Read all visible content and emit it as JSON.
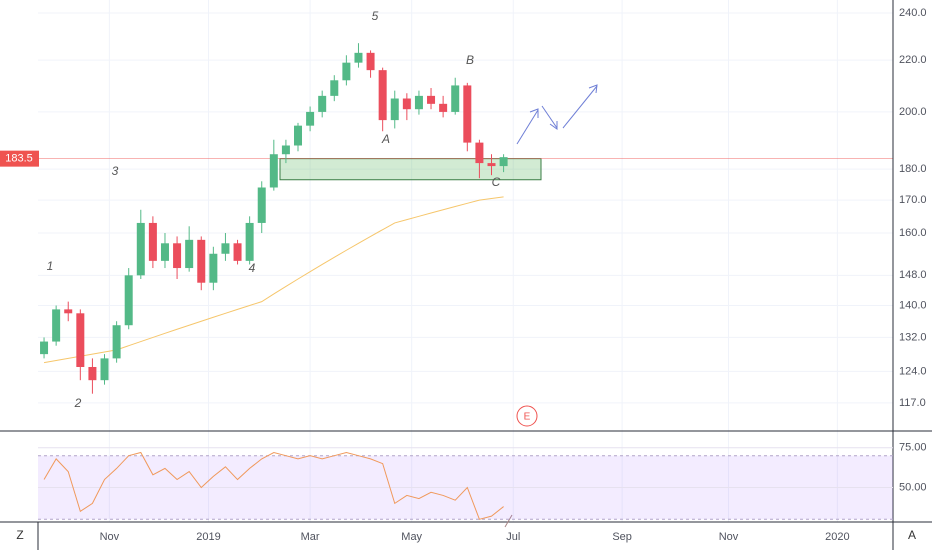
{
  "chart_data": {
    "type": "candlestick",
    "open": [
      128,
      131,
      139,
      138,
      125,
      122,
      127,
      135,
      148,
      163,
      152,
      157,
      150,
      158,
      146,
      154,
      157,
      152,
      163,
      174,
      185,
      188,
      195,
      200,
      206,
      212,
      219,
      223,
      216,
      197,
      205,
      201,
      206,
      203,
      200,
      210,
      189,
      182,
      181
    ],
    "high": [
      132,
      140,
      141,
      139,
      127,
      128,
      136,
      150,
      167,
      165,
      160,
      159,
      162,
      159,
      156,
      160,
      158,
      165,
      176,
      190,
      190,
      196,
      202,
      208,
      214,
      222,
      227,
      224,
      217,
      208,
      207,
      208,
      209,
      206,
      213,
      211,
      190,
      185,
      185
    ],
    "low": [
      127,
      130,
      136,
      122,
      119,
      121,
      126,
      134,
      147,
      150,
      150,
      147,
      149,
      144,
      144,
      152,
      151,
      151,
      160,
      173,
      182,
      186,
      193,
      198,
      204,
      210,
      217,
      213,
      193,
      194,
      197,
      199,
      201,
      198,
      199,
      186,
      177,
      178,
      179
    ],
    "close": [
      131,
      139,
      138,
      125,
      122,
      127,
      135,
      148,
      163,
      152,
      157,
      150,
      158,
      146,
      154,
      157,
      152,
      163,
      174,
      185,
      188,
      195,
      200,
      206,
      212,
      219,
      223,
      216,
      197,
      205,
      201,
      206,
      203,
      200,
      210,
      189,
      182,
      181,
      184
    ],
    "up_color": "#53b987",
    "down_color": "#eb4d5c",
    "ma": {
      "color": "#f6c66b",
      "values": [
        126,
        126.5,
        127,
        127.5,
        128,
        128.5,
        129,
        130,
        131,
        132,
        133,
        134,
        135,
        136,
        137,
        138,
        139,
        140,
        141,
        143,
        145,
        147,
        149,
        151,
        153,
        155,
        157,
        159,
        161,
        163,
        164,
        165,
        166,
        167,
        168,
        169,
        170,
        170.5,
        171
      ]
    },
    "log_scale": true,
    "ylim": [
      111.3,
      245.8
    ],
    "yticks": [
      {
        "value": 240,
        "label": "240.0"
      },
      {
        "value": 220,
        "label": "220.0"
      },
      {
        "value": 200,
        "label": "200.0"
      },
      {
        "value": 180,
        "label": "180.0"
      },
      {
        "value": 170,
        "label": "170.0"
      },
      {
        "value": 160,
        "label": "160.0"
      },
      {
        "value": 148,
        "label": "148.0"
      },
      {
        "value": 140,
        "label": "140.0"
      },
      {
        "value": 132,
        "label": "132.0"
      },
      {
        "value": 124,
        "label": "124.0"
      },
      {
        "value": 117,
        "label": "117.0"
      }
    ],
    "xlim": [
      -0.5,
      70.2
    ],
    "xticks": [
      {
        "value": 5.4,
        "label": "Nov"
      },
      {
        "value": 13.6,
        "label": "2019"
      },
      {
        "value": 22.0,
        "label": "Mar"
      },
      {
        "value": 30.4,
        "label": "May"
      },
      {
        "value": 38.8,
        "label": "Jul"
      },
      {
        "value": 47.8,
        "label": "Sep"
      },
      {
        "value": 56.6,
        "label": "Nov"
      },
      {
        "value": 65.6,
        "label": "2020"
      }
    ],
    "grid": true,
    "last_price": {
      "value": 183.5,
      "label": "183.5",
      "color": "#ef5350"
    },
    "zone": {
      "low": 176.5,
      "high": 183.5
    },
    "annotations": [
      "1",
      "2",
      "3",
      "4",
      "5",
      "A",
      "B",
      "C"
    ],
    "event": "E",
    "rsi": {
      "color": "#f0995b",
      "values": [
        55,
        68,
        60,
        35,
        40,
        55,
        62,
        70,
        72,
        58,
        62,
        55,
        60,
        50,
        57,
        63,
        55,
        62,
        68,
        72,
        70,
        68,
        70,
        68,
        70,
        72,
        70,
        68,
        65,
        40,
        45,
        43,
        47,
        45,
        42,
        50,
        30,
        32,
        38
      ],
      "ylim": [
        28.3,
        84.9
      ],
      "band": [
        30,
        70
      ],
      "yticks": [
        {
          "value": 75,
          "label": "75.00"
        },
        {
          "value": 50,
          "label": "50.00"
        }
      ]
    },
    "corner_left": "Z",
    "corner_right": "A"
  }
}
